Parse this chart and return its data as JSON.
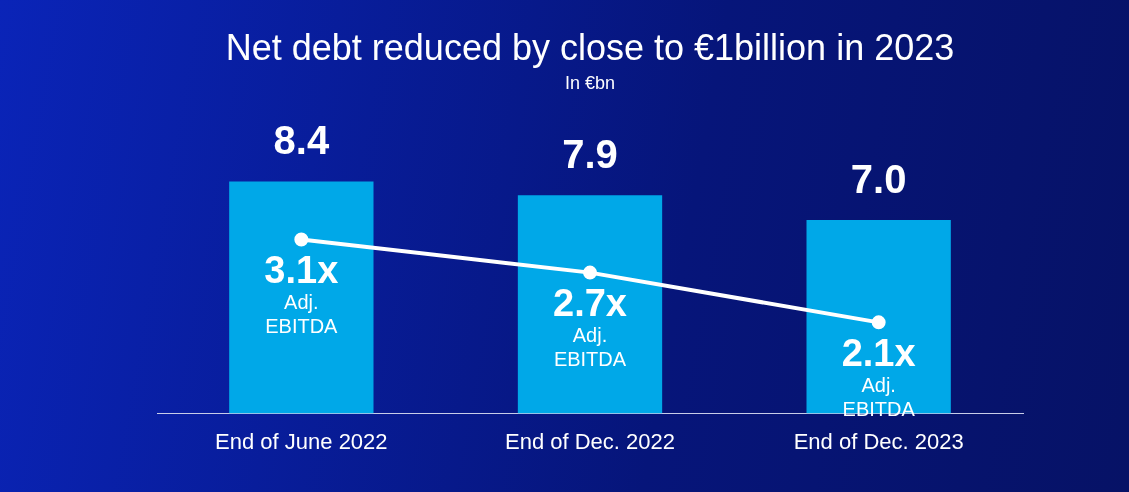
{
  "chart_data": {
    "type": "bar",
    "title": "Net debt reduced by close to €1billion in 2023",
    "subtitle": "In €bn",
    "categories": [
      "End of June 2022",
      "End of Dec. 2022",
      "End of Dec. 2023"
    ],
    "series": [
      {
        "color": "#00a8e8",
        "values": [
          8.4,
          7.9,
          7.0
        ],
        "value_labels": [
          "8.4",
          "7.9",
          "7.0"
        ]
      },
      {
        "type": "line",
        "axis": "y2",
        "color": "#ffffff",
        "values": [
          3.1,
          2.7,
          2.1
        ],
        "value_labels": [
          "3.1x",
          "2.7x",
          "2.1x"
        ]
      }
    ],
    "annotations": [
      "Adj. EBITDA",
      "Adj. EBITDA",
      "Adj. EBITDA"
    ],
    "tick_labels": "x",
    "grid": false,
    "legend": false,
    "marker": "circle",
    "line_style": "solid"
  }
}
